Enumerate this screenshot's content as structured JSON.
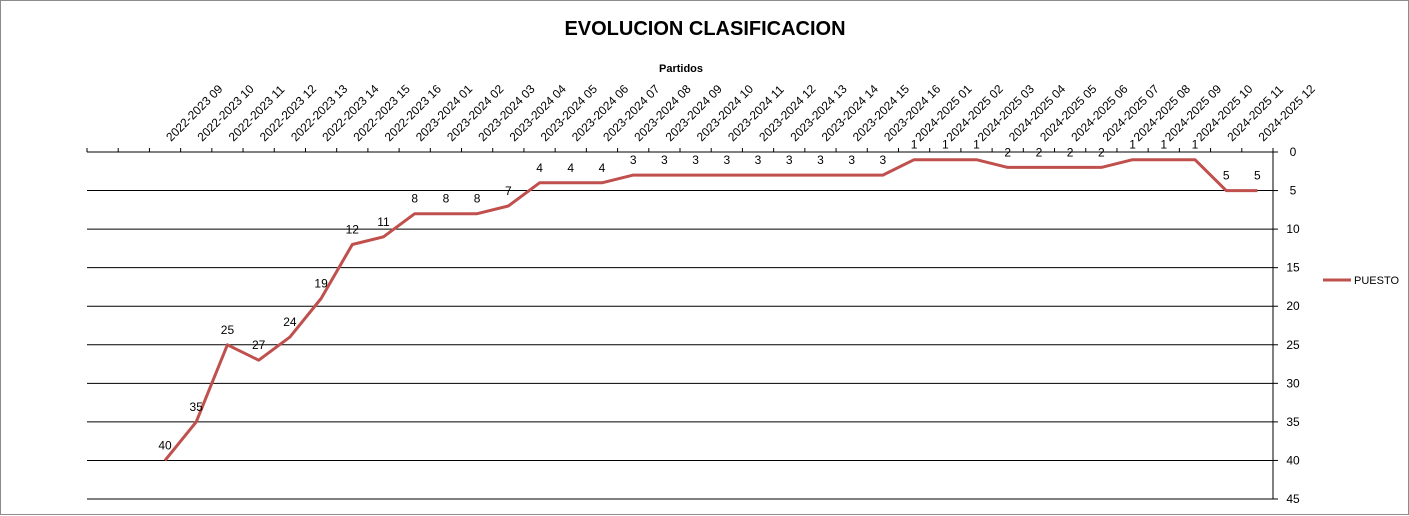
{
  "chart_data": {
    "type": "line",
    "title": "EVOLUCION CLASIFICACION",
    "xlabel": "Partidos",
    "ylabel": "",
    "ylim": [
      0,
      45
    ],
    "y_reversed": true,
    "y_ticks": [
      0,
      5,
      10,
      15,
      20,
      25,
      30,
      35,
      40,
      45
    ],
    "y_axis_position": "right",
    "x_axis_position": "top",
    "grid": true,
    "legend_position": "right",
    "categories": [
      "",
      "",
      "2022-2023 09",
      "2022-2023 10",
      "2022-2023 11",
      "2022-2023 12",
      "2022-2023 13",
      "2022-2023 14",
      "2022-2023 15",
      "2022-2023 16",
      "2023-2024 01",
      "2023-2024 02",
      "2023-2024 03",
      "2023-2024 04",
      "2023-2024 05",
      "2023-2024 06",
      "2023-2024 07",
      "2023-2024 08",
      "2023-2024 09",
      "2023-2024 10",
      "2023-2024 11",
      "2023-2024 12",
      "2023-2024 13",
      "2023-2024 14",
      "2023-2024 15",
      "2023-2024 16",
      "2024-2025 01",
      "2024-2025 02",
      "2024-2025 03",
      "2024-2025 04",
      "2024-2025 05",
      "2024-2025 06",
      "2024-2025 07",
      "2024-2025 08",
      "2024-2025 09",
      "2024-2025 10",
      "2024-2025 11",
      "2024-2025 12"
    ],
    "series": [
      {
        "name": "PUESTO",
        "color": "#c0504d",
        "values": [
          null,
          null,
          40,
          35,
          25,
          27,
          24,
          19,
          12,
          11,
          8,
          8,
          8,
          7,
          4,
          4,
          4,
          3,
          3,
          3,
          3,
          3,
          3,
          3,
          3,
          3,
          1,
          1,
          1,
          2,
          2,
          2,
          2,
          1,
          1,
          1,
          5,
          5
        ]
      }
    ]
  }
}
